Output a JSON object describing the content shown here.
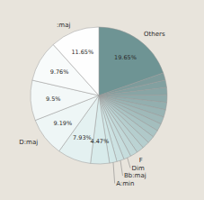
{
  "chart_data": {
    "type": "pie",
    "categories": [
      "Others",
      null,
      null,
      null,
      null,
      null,
      null,
      null,
      null,
      null,
      null,
      null,
      null,
      "F",
      "Dim",
      "Bb:maj",
      "A:min",
      null,
      null,
      "D:maj",
      null,
      null,
      ":maj"
    ],
    "values": [
      19.65,
      1.740625,
      1.740625,
      1.740625,
      1.740625,
      1.740625,
      1.740625,
      1.740625,
      1.740625,
      1.740625,
      1.740625,
      1.740625,
      1.740625,
      1.740625,
      1.740625,
      1.740625,
      1.740625,
      4.47,
      7.93,
      9.19,
      9.5,
      9.76,
      11.65
    ],
    "value_labels": [
      "19.65%",
      null,
      null,
      null,
      null,
      null,
      null,
      null,
      null,
      null,
      null,
      null,
      null,
      null,
      null,
      null,
      null,
      "4.47%",
      "7.93%",
      "9.19%",
      "9.5%",
      "9.76%",
      "11.65%"
    ],
    "colors": [
      "#6e9494",
      "#7d9b9b",
      "#82a0a0",
      "#88a5a5",
      "#8eaaaa",
      "#93afaf",
      "#99b4b4",
      "#9fb9b9",
      "#a4bebe",
      "#aac4c4",
      "#b0c9c9",
      "#b5cece",
      "#bbd3d3",
      "#c1d8d8",
      "#c6dddd",
      "#cce2e2",
      "#d2e8e8",
      "#d8ebeb",
      "#e4f1f1",
      "#eef6f6",
      "#f3f8f8",
      "#f8fbfb",
      "#fefefe"
    ],
    "data_labels": true
  }
}
